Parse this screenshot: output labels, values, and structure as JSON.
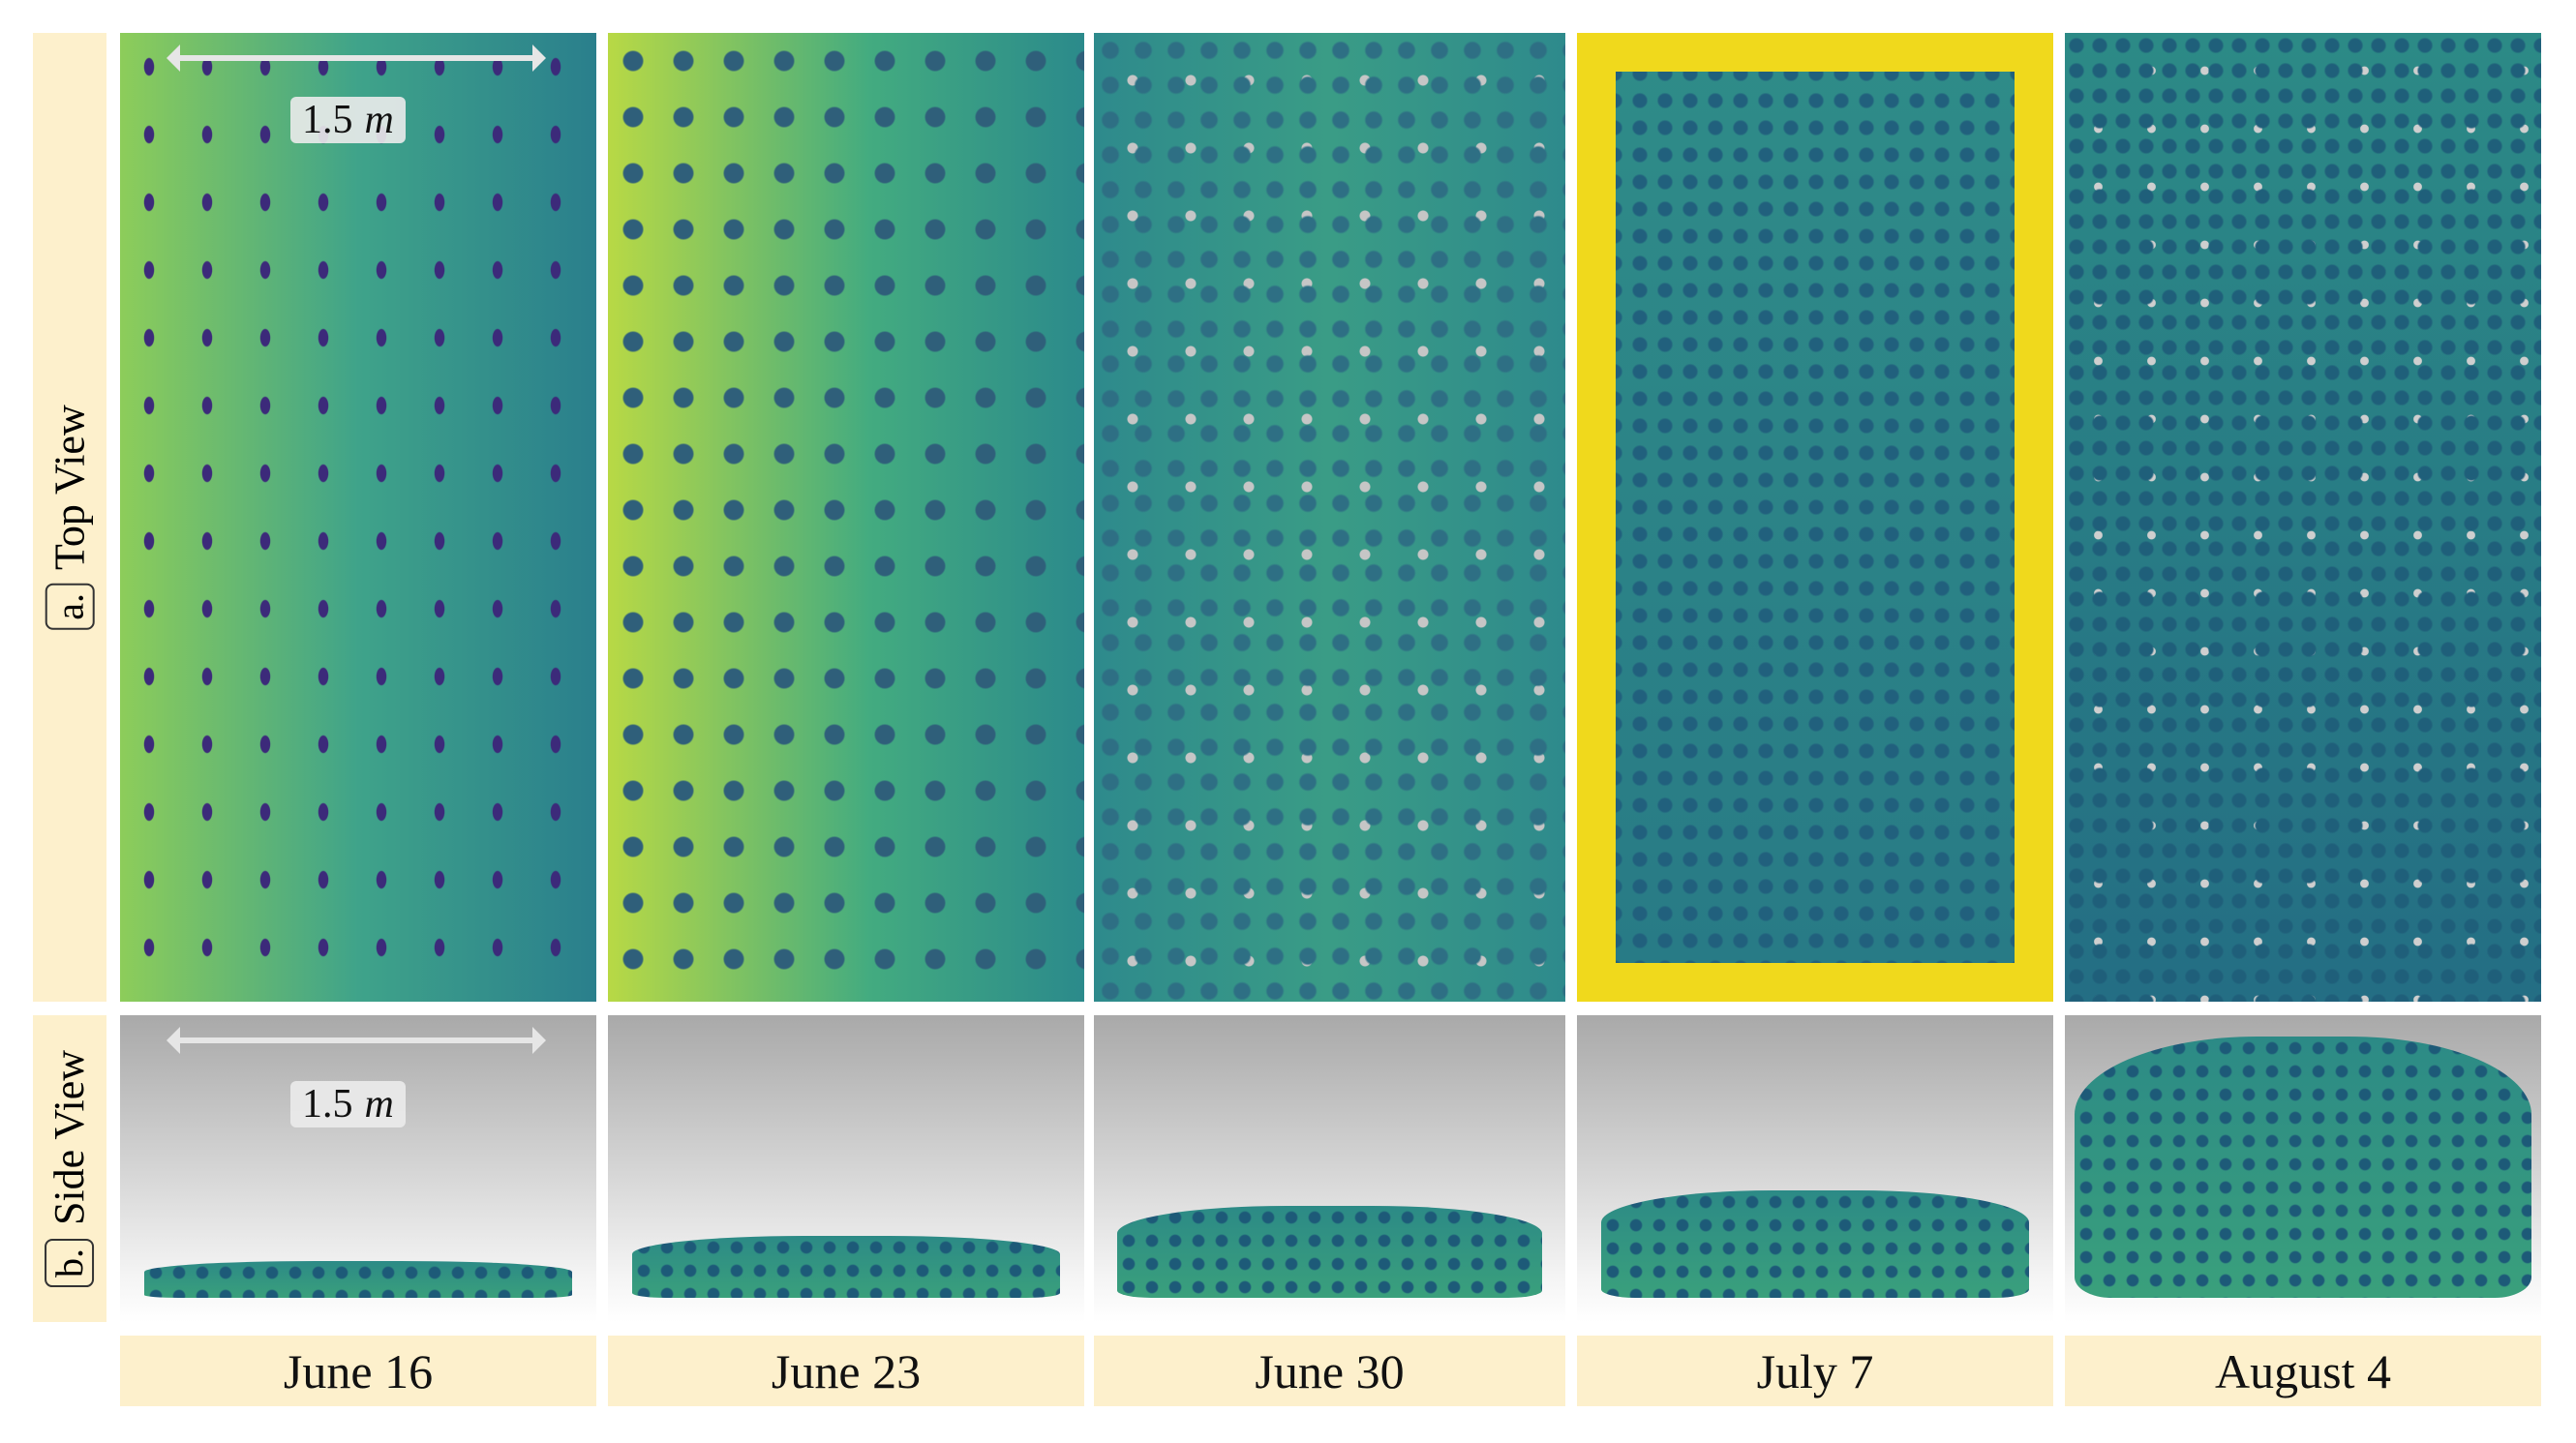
{
  "rows": [
    {
      "tag": "a.",
      "label": "Top View"
    },
    {
      "tag": "b.",
      "label": "Side View"
    }
  ],
  "scale_bar": {
    "number": "1.5",
    "unit": "m"
  },
  "dates": [
    "June 16",
    "June 23",
    "June 30",
    "July 7",
    "August 4"
  ]
}
